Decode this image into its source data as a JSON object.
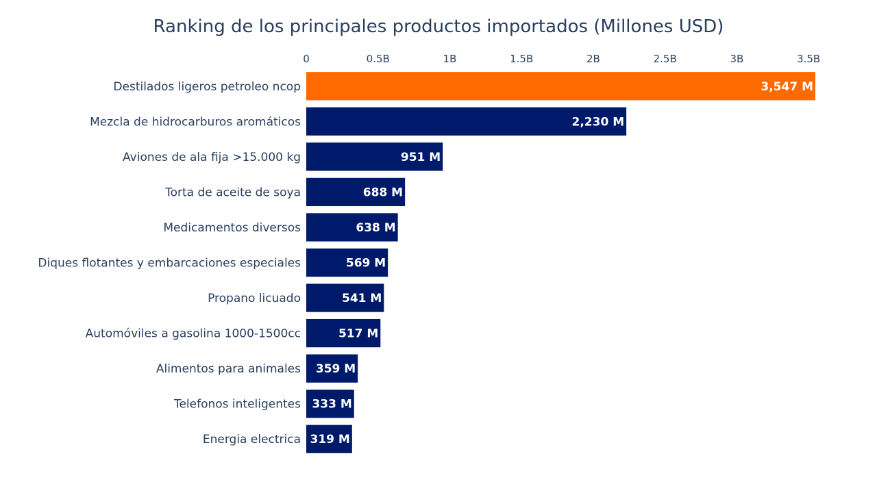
{
  "chart_data": {
    "type": "bar",
    "orientation": "horizontal",
    "title": "Ranking de los principales productos importados (Millones USD)",
    "xlabel": "",
    "ylabel": "",
    "xlim": [
      0,
      3547
    ],
    "x_tick_values": [
      0,
      500,
      1000,
      1500,
      2000,
      2500,
      3000,
      3500
    ],
    "x_tick_labels": [
      "0",
      "0.5B",
      "1B",
      "1.5B",
      "2B",
      "2.5B",
      "3B",
      "3.5B"
    ],
    "x_axis_position": "top",
    "grid": false,
    "categories": [
      "Destilados ligeros petroleo ncop",
      "Mezcla de hidrocarburos aromáticos",
      "Aviones de ala fija >15.000 kg",
      "Torta de aceite de soya",
      "Medicamentos diversos",
      "Diques flotantes y embarcaciones especiales",
      "Propano licuado",
      "Automóviles a gasolina 1000-1500cc",
      "Alimentos para animales",
      "Telefonos inteligentes",
      "Energia electrica"
    ],
    "values": [
      3547,
      2230,
      951,
      688,
      638,
      569,
      541,
      517,
      359,
      333,
      319
    ],
    "data_labels": [
      "3,547 M",
      "2,230 M",
      "951 M",
      "688 M",
      "638 M",
      "569 M",
      "541 M",
      "517 M",
      "359 M",
      "333 M",
      "319 M"
    ],
    "highlight_index": 0,
    "colors": {
      "highlight": "#ff6a00",
      "default": "#001a6b",
      "text": "#2a3f5f",
      "label": "#ffffff"
    }
  }
}
